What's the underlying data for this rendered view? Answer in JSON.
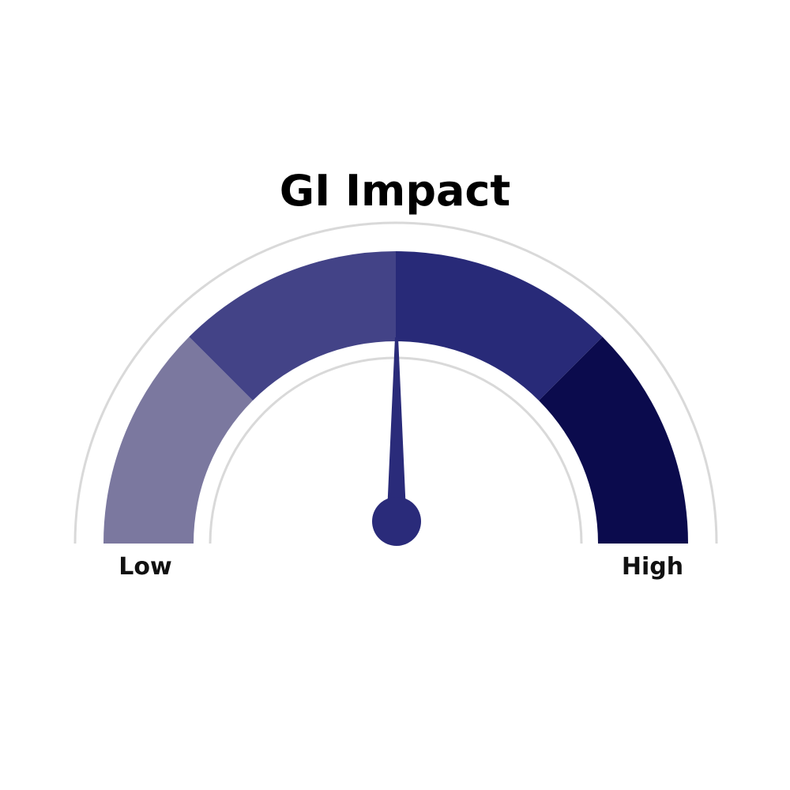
{
  "chart_data": {
    "type": "gauge",
    "title": "GI Impact",
    "min_label": "Low",
    "max_label": "High",
    "range": [
      0,
      100
    ],
    "value": 50,
    "segments": [
      {
        "from": 0,
        "to": 25,
        "color": "#7b789f"
      },
      {
        "from": 25,
        "to": 50,
        "color": "#434387"
      },
      {
        "from": 50,
        "to": 75,
        "color": "#282a78"
      },
      {
        "from": 75,
        "to": 100,
        "color": "#0b0b4d"
      }
    ],
    "needle_color": "#2a2b7a",
    "track_color": "#d9d9d9"
  }
}
